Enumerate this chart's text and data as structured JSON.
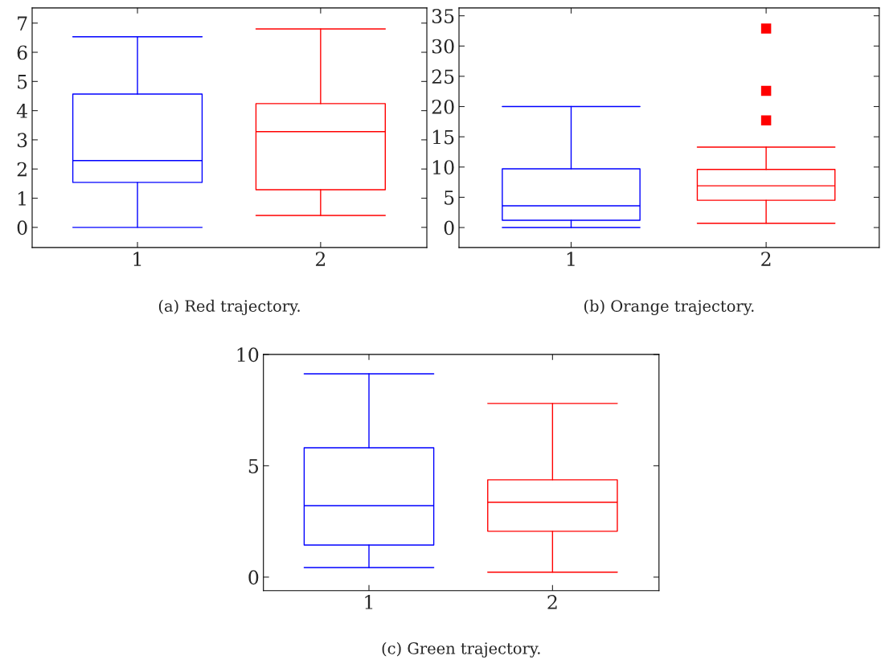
{
  "chart_data": [
    {
      "type": "box",
      "categories": [
        "1",
        "2"
      ],
      "colors": [
        "#0000ff",
        "#ff0000"
      ],
      "ylim": [
        -0.69,
        7.52
      ],
      "yticks": [
        0,
        1,
        2,
        3,
        4,
        5,
        6,
        7
      ],
      "grid": false,
      "marker": "square",
      "annotations": [
        "(a) Red trajectory."
      ],
      "boxes": [
        {
          "low": 0,
          "q1": 1.54,
          "median": 2.29,
          "q3": 4.57,
          "high": 6.53
        },
        {
          "low": 0.41,
          "q1": 1.29,
          "median": 3.28,
          "q3": 4.24,
          "high": 6.8
        }
      ]
    },
    {
      "type": "box",
      "categories": [
        "1",
        "2"
      ],
      "colors": [
        "#0000ff",
        "#ff0000"
      ],
      "ylim": [
        -3.3,
        36.3
      ],
      "yticks": [
        0,
        5,
        10,
        15,
        20,
        25,
        30,
        35
      ],
      "grid": false,
      "marker": "square",
      "annotations": [
        "(b) Orange trajectory."
      ],
      "boxes": [
        {
          "low": 0,
          "q1": 1.2,
          "median": 3.6,
          "q3": 9.7,
          "high": 20.0
        },
        {
          "low": 0.7,
          "q1": 4.5,
          "median": 6.9,
          "q3": 9.6,
          "high": 13.3,
          "outliers": [
            32.9,
            22.6,
            17.7
          ]
        }
      ]
    },
    {
      "type": "box",
      "categories": [
        "1",
        "2"
      ],
      "colors": [
        "#0000ff",
        "#ff0000"
      ],
      "ylim": [
        -0.61,
        10
      ],
      "yticks": [
        0,
        5,
        10
      ],
      "grid": false,
      "marker": "square",
      "annotations": [
        "(c) Green trajectory."
      ],
      "boxes": [
        {
          "low": 0.43,
          "q1": 1.44,
          "median": 3.21,
          "q3": 5.81,
          "high": 9.13
        },
        {
          "low": 0.22,
          "q1": 2.06,
          "median": 3.36,
          "q3": 4.37,
          "high": 7.8
        }
      ]
    }
  ]
}
